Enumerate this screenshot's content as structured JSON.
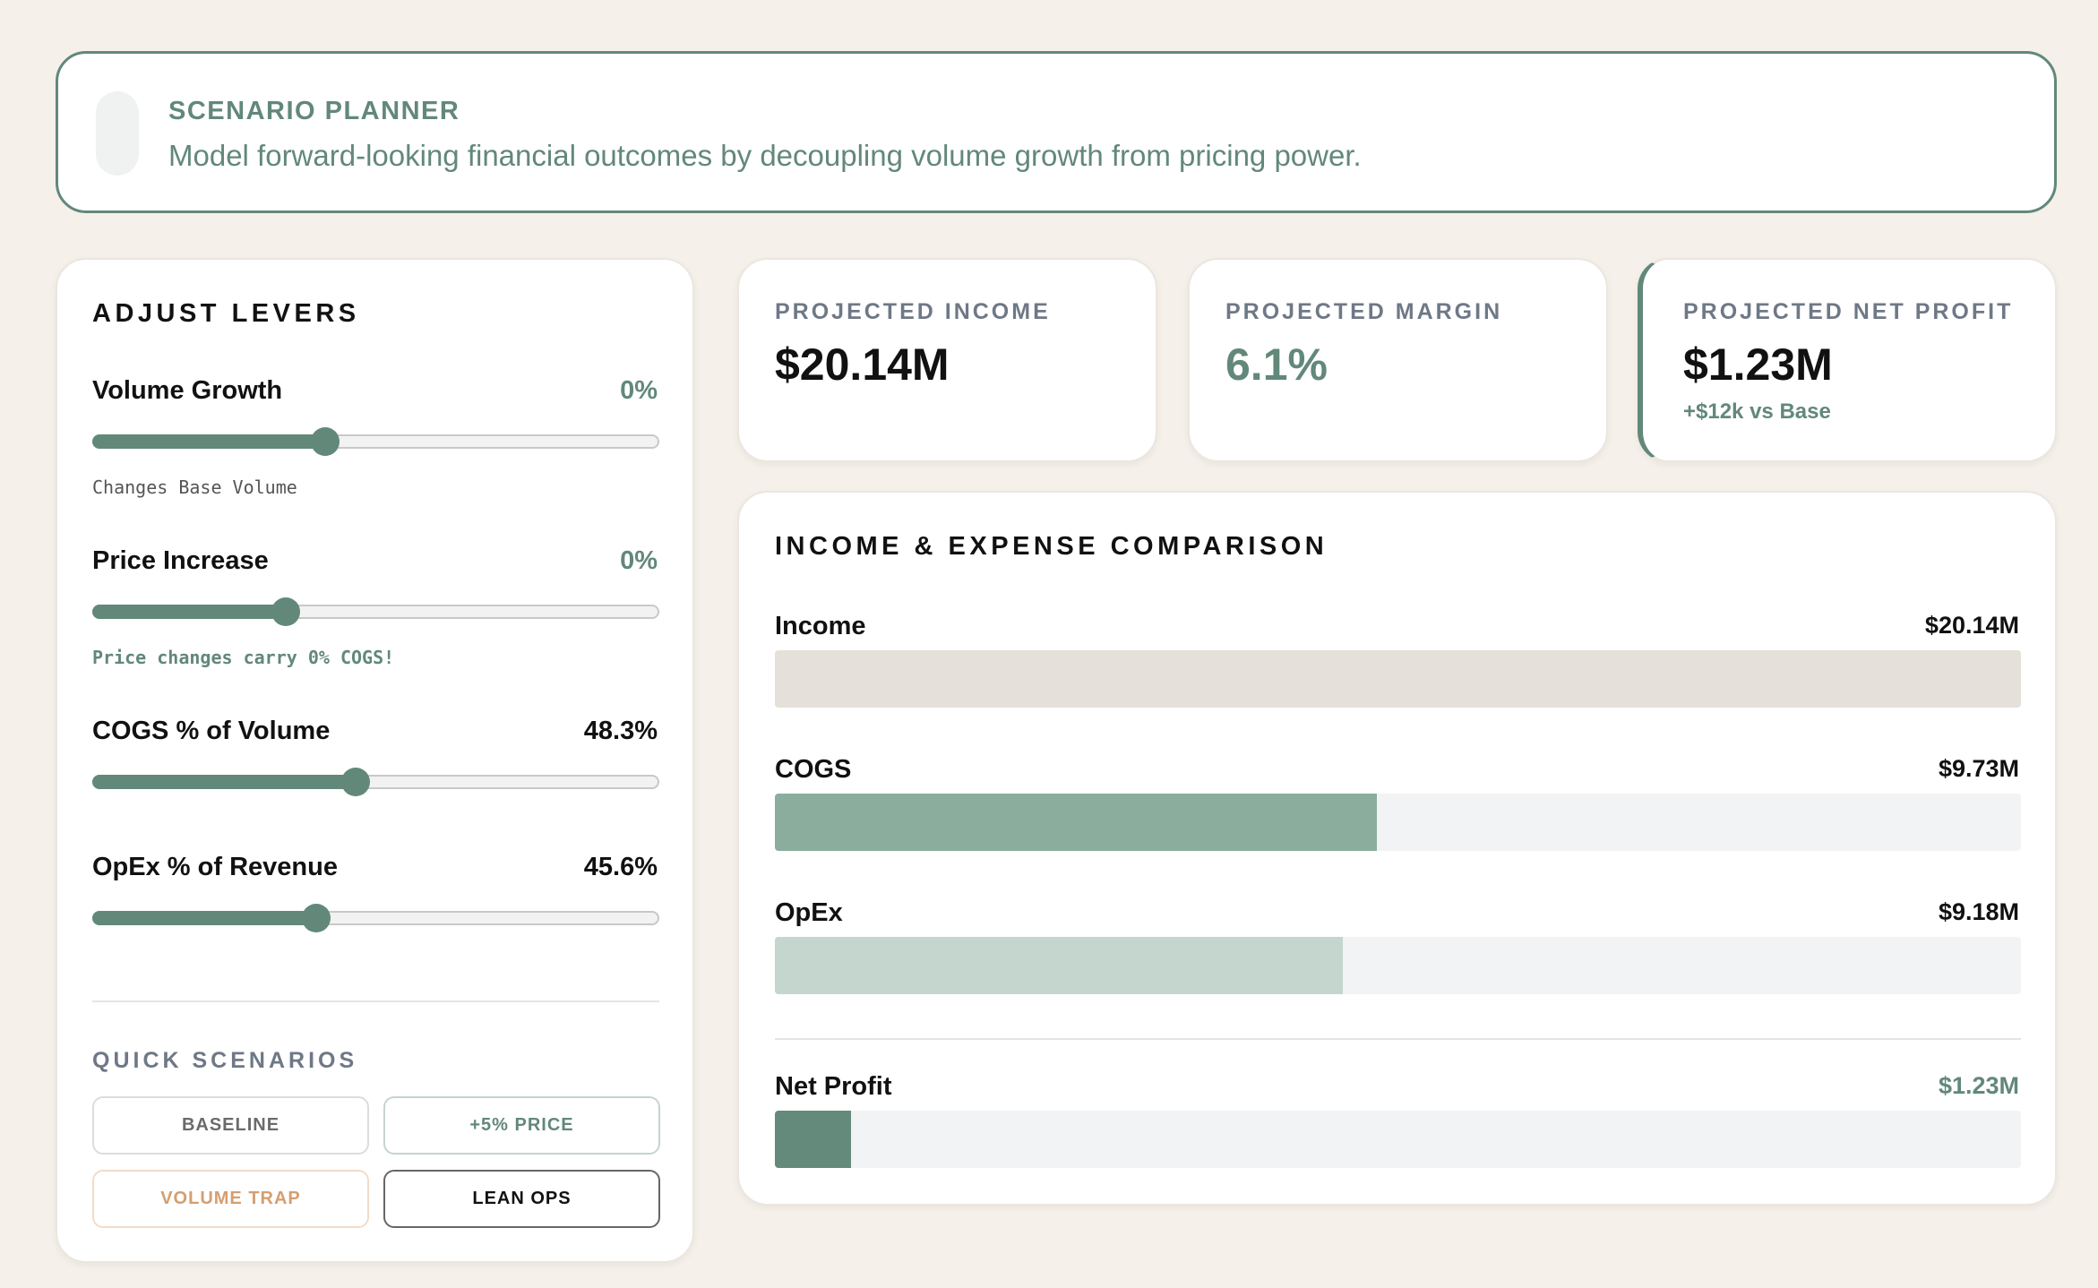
{
  "header": {
    "title": "SCENARIO PLANNER",
    "subtitle": "Model forward-looking financial outcomes by decoupling volume growth from pricing power."
  },
  "levers": {
    "heading": "ADJUST LEVERS",
    "items": [
      {
        "label": "Volume Growth",
        "value": "0%",
        "level": 0.41,
        "note": "Changes Base Volume"
      },
      {
        "label": "Price Increase",
        "value": "0%",
        "level": 0.34,
        "note": "Price changes carry 0% COGS!"
      },
      {
        "label": "COGS % of Volume",
        "value": "48.3%",
        "level": 0.465,
        "note": ""
      },
      {
        "label": "OpEx % of Revenue",
        "value": "45.6%",
        "level": 0.395,
        "note": ""
      }
    ]
  },
  "quick_scenarios": {
    "heading": "QUICK SCENARIOS",
    "buttons": [
      "BASELINE",
      "+5% PRICE",
      "VOLUME TRAP",
      "LEAN OPS"
    ]
  },
  "kpis": {
    "income": {
      "label": "PROJECTED INCOME",
      "value": "$20.14M"
    },
    "margin": {
      "label": "PROJECTED MARGIN",
      "value": "6.1%"
    },
    "net_profit": {
      "label": "PROJECTED NET PROFIT",
      "value": "$1.23M",
      "delta": "+$12k vs Base"
    }
  },
  "comparison": {
    "title": "INCOME & EXPENSE COMPARISON"
  },
  "colors": {
    "accent": "#62887a",
    "income_bar": "#e5e0d9",
    "cogs_bar": "#8aad9d",
    "opex_bar": "#c4d6ce",
    "net_bar": "#648a7c",
    "background": "#f5f0e9"
  },
  "chart_data": {
    "type": "bar",
    "orientation": "horizontal",
    "title": "INCOME & EXPENSE COMPARISON",
    "categories": [
      "Income",
      "COGS",
      "OpEx",
      "Net Profit"
    ],
    "values": [
      20.14,
      9.73,
      9.18,
      1.23
    ],
    "value_labels": [
      "$20.14M",
      "$9.73M",
      "$9.18M",
      "$1.23M"
    ],
    "unit": "$M",
    "xlim": [
      0,
      20.14
    ],
    "grid": false,
    "legend": "none"
  }
}
